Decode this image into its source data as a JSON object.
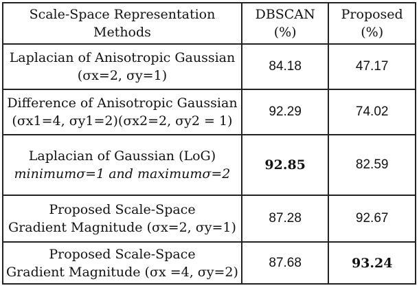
{
  "header": {
    "methods_line1": "Scale-Space Representation",
    "methods_line2": "Methods",
    "dbscan_line1": "DBSCAN",
    "dbscan_line2": "(%)",
    "proposed_line1": "Proposed",
    "proposed_line2": "(%)"
  },
  "rows": [
    {
      "method_line1": "Laplacian of Anisotropic Gaussian",
      "method_line2": "(σx=2, σy=1)",
      "dbscan": "84.18",
      "proposed": "47.17"
    },
    {
      "method_line1": "Difference of Anisotropic Gaussian",
      "method_line2": "(σx1=4, σy1=2)(σx2=2, σy2 = 1)",
      "dbscan": "92.29",
      "proposed": "74.02"
    },
    {
      "method_line1": "Laplacian of Gaussian (LoG)",
      "method_line2": "minimumσ=1 and maximumσ=2",
      "dbscan": "92.85",
      "proposed": "82.59"
    },
    {
      "method_line1": "Proposed Scale-Space",
      "method_line2": "Gradient Magnitude (σx=2, σy=1)",
      "dbscan": "87.28",
      "proposed": "92.67"
    },
    {
      "method_line1": "Proposed Scale-Space",
      "method_line2": "Gradient Magnitude (σx =4, σy=2)",
      "dbscan": "87.68",
      "proposed": "93.24"
    }
  ]
}
